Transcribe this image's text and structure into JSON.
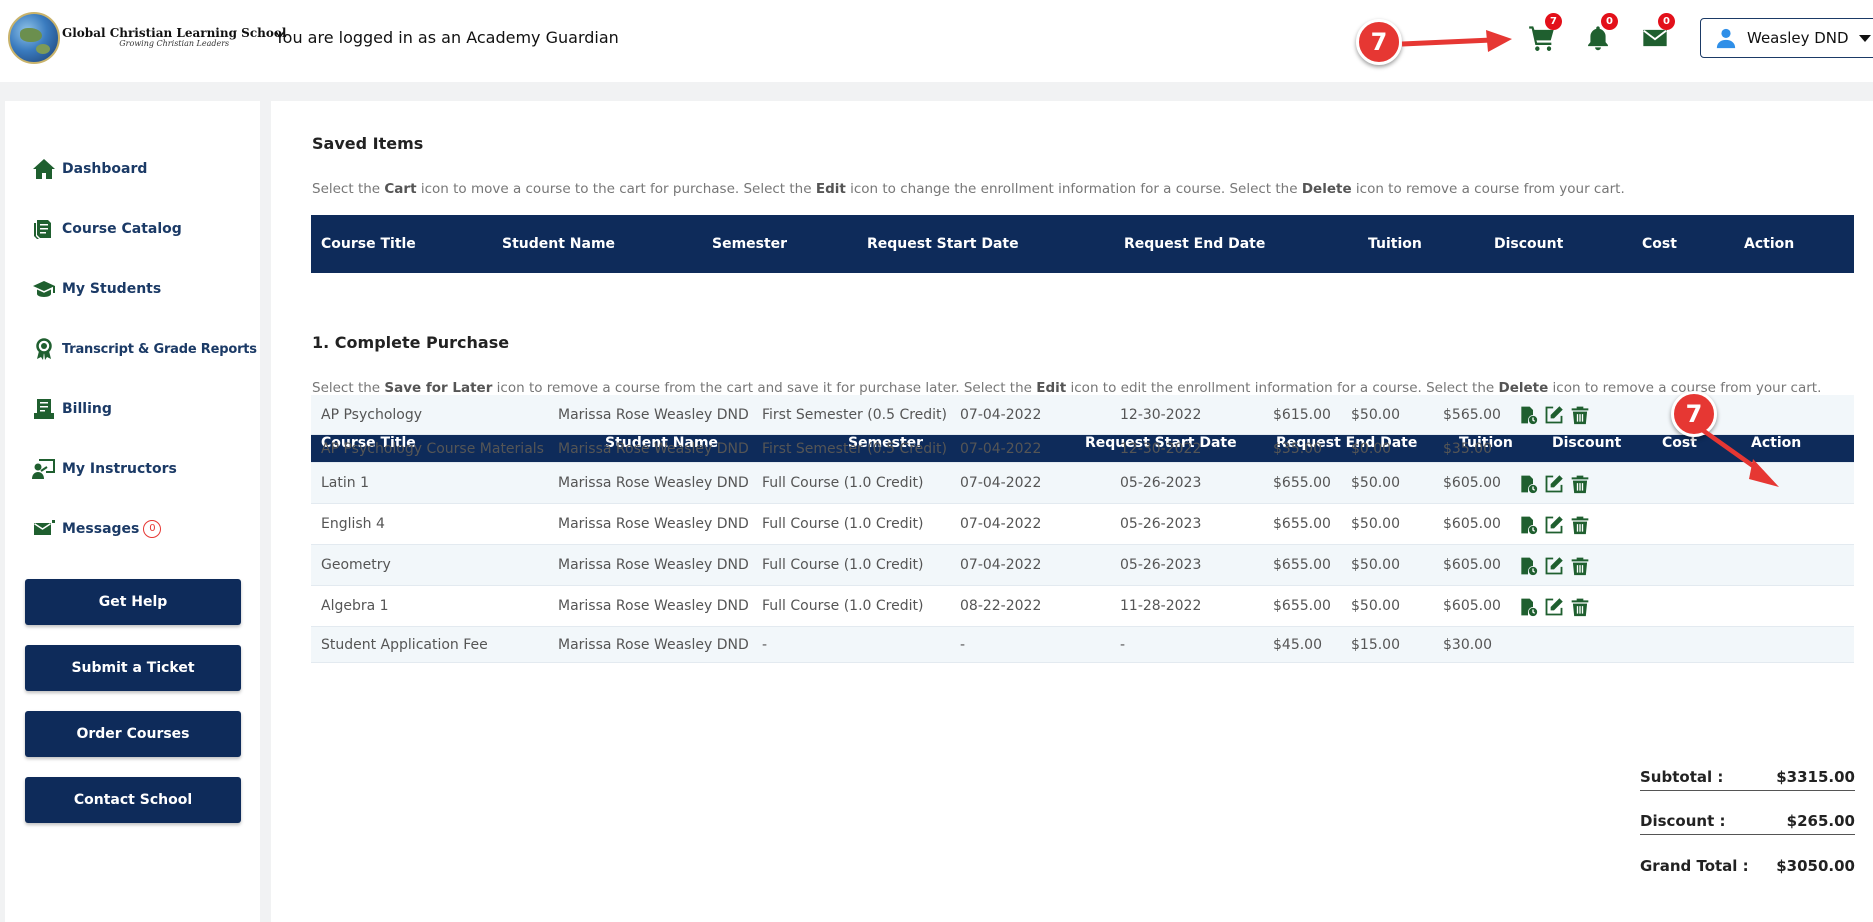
{
  "header": {
    "logo_title": "Global Christian Learning School",
    "logo_tagline": "Growing Christian Leaders",
    "logged_in_text": "You are logged in as an Academy Guardian",
    "cart_count": "7",
    "notification_count": "0",
    "mail_count": "0",
    "user_name": "Weasley DND",
    "callout_number": "7"
  },
  "sidebar": {
    "items": [
      {
        "label": "Dashboard",
        "icon": "home-icon"
      },
      {
        "label": "Course Catalog",
        "icon": "books-icon"
      },
      {
        "label": "My Students",
        "icon": "graduation-cap-icon"
      },
      {
        "label": "Transcript & Grade Reports",
        "icon": "award-icon"
      },
      {
        "label": "Billing",
        "icon": "billing-icon"
      },
      {
        "label": "My Instructors",
        "icon": "instructor-icon"
      },
      {
        "label": "Messages",
        "icon": "envelope-icon",
        "count": "0"
      }
    ],
    "buttons": [
      "Get Help",
      "Submit a Ticket",
      "Order Courses",
      "Contact School"
    ]
  },
  "saved_items": {
    "title": "Saved Items",
    "instructions": {
      "p1": "Select the ",
      "b1": "Cart",
      "p2": " icon to move a course to the cart for purchase. Select the ",
      "b2": "Edit",
      "p3": " icon to change the enrollment information for a course. Select the ",
      "b3": "Delete",
      "p4": " icon to remove a course from your cart."
    },
    "columns": [
      "Course Title",
      "Student Name",
      "Semester",
      "Request Start Date",
      "Request End Date",
      "Tuition",
      "Discount",
      "Cost",
      "Action"
    ]
  },
  "purchase": {
    "title": "1. Complete Purchase",
    "instructions": {
      "p1": "Select the ",
      "b1": "Save for Later",
      "p2": " icon to remove a course from the cart and save it for purchase later. Select the ",
      "b2": "Edit",
      "p3": " icon to edit the enrollment information for a course. Select the ",
      "b3": "Delete",
      "p4": " icon to remove a course from your cart."
    },
    "columns": [
      "Course Title",
      "Student Name",
      "Semester",
      "Request Start Date",
      "Request End Date",
      "Tuition",
      "Discount",
      "Cost",
      "Action"
    ],
    "rows": [
      {
        "course": "AP Psychology",
        "student": "Marissa Rose Weasley DND",
        "semester": "First Semester (0.5 Credit)",
        "start": "07-04-2022",
        "end": "12-30-2022",
        "tuition": "$615.00",
        "discount": "$50.00",
        "cost": "$565.00",
        "actions": true
      },
      {
        "course": "AP Psychology Course Materials",
        "student": "Marissa Rose Weasley DND",
        "semester": "First Semester (0.5 Credit)",
        "start": "07-04-2022",
        "end": "12-30-2022",
        "tuition": "$35.00",
        "discount": "$0.00",
        "cost": "$35.00",
        "actions": false
      },
      {
        "course": "Latin 1",
        "student": "Marissa Rose Weasley DND",
        "semester": "Full Course (1.0 Credit)",
        "start": "07-04-2022",
        "end": "05-26-2023",
        "tuition": "$655.00",
        "discount": "$50.00",
        "cost": "$605.00",
        "actions": true
      },
      {
        "course": "English 4",
        "student": "Marissa Rose Weasley DND",
        "semester": "Full Course (1.0 Credit)",
        "start": "07-04-2022",
        "end": "05-26-2023",
        "tuition": "$655.00",
        "discount": "$50.00",
        "cost": "$605.00",
        "actions": true
      },
      {
        "course": "Geometry",
        "student": "Marissa Rose Weasley DND",
        "semester": "Full Course (1.0 Credit)",
        "start": "07-04-2022",
        "end": "05-26-2023",
        "tuition": "$655.00",
        "discount": "$50.00",
        "cost": "$605.00",
        "actions": true
      },
      {
        "course": "Algebra 1",
        "student": "Marissa Rose Weasley DND",
        "semester": "Full Course (1.0 Credit)",
        "start": "08-22-2022",
        "end": "11-28-2022",
        "tuition": "$655.00",
        "discount": "$50.00",
        "cost": "$605.00",
        "actions": true
      },
      {
        "course": "Student Application Fee",
        "student": "Marissa Rose Weasley DND",
        "semester": "-",
        "start": "-",
        "end": "-",
        "tuition": "$45.00",
        "discount": "$15.00",
        "cost": "$30.00",
        "actions": false
      }
    ],
    "totals": {
      "subtotal_label": "Subtotal :",
      "subtotal": "$3315.00",
      "discount_label": "Discount :",
      "discount": "$265.00",
      "grand_label": "Grand Total :",
      "grand": "$3050.00"
    }
  },
  "colors": {
    "navy": "#0e2b5a",
    "icon_green": "#1f5f2f",
    "badge_red": "#e3101a",
    "callout_red": "#e63733"
  }
}
